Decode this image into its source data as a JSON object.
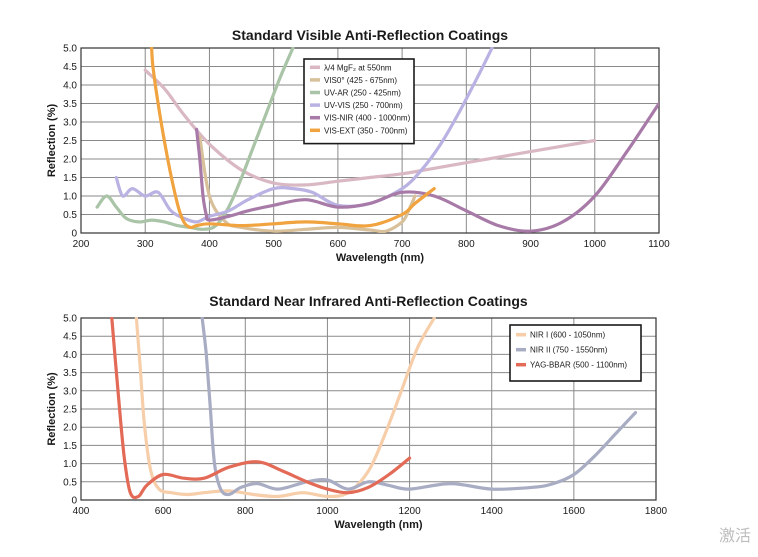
{
  "chart_data": [
    {
      "type": "line",
      "title": "Standard Visible Anti-Reflection Coatings",
      "xlabel": "Wavelength (nm)",
      "ylabel": "Reflection (%)",
      "xlim": [
        200,
        1100
      ],
      "ylim": [
        0,
        5.0
      ],
      "xticks": [
        "200",
        "300",
        "400",
        "500",
        "600",
        "700",
        "800",
        "900",
        "1000",
        "1100"
      ],
      "yticks": [
        "0",
        "0.5",
        "1.0",
        "1.5",
        "2.0",
        "2.5",
        "3.0",
        "3.5",
        "4.0",
        "4.5",
        "5.0"
      ],
      "grid": true,
      "legend_position": "top-left-center",
      "series": [
        {
          "name": "λ/4 MgF₂ at 550nm",
          "color": "#d9b8c4",
          "x": [
            300,
            330,
            360,
            400,
            450,
            500,
            550,
            600,
            650,
            700,
            750,
            800,
            850,
            900,
            950,
            1000
          ],
          "y": [
            4.4,
            3.9,
            3.2,
            2.4,
            1.7,
            1.35,
            1.3,
            1.4,
            1.5,
            1.6,
            1.75,
            1.9,
            2.05,
            2.2,
            2.35,
            2.5
          ]
        },
        {
          "name": "VIS0° (425 - 675nm)",
          "color": "#d8c09a",
          "x": [
            385,
            400,
            425,
            450,
            500,
            550,
            600,
            650,
            675,
            700,
            710,
            720
          ],
          "y": [
            2.6,
            1.0,
            0.3,
            0.15,
            0.05,
            0.1,
            0.15,
            0.08,
            0.05,
            0.3,
            0.6,
            1.0
          ]
        },
        {
          "name": "UV-AR (250 - 425nm)",
          "color": "#a9c4a6",
          "x": [
            225,
            240,
            255,
            270,
            290,
            310,
            330,
            350,
            370,
            390,
            410,
            430,
            450,
            470,
            490,
            510,
            530
          ],
          "y": [
            0.7,
            1.0,
            0.7,
            0.4,
            0.3,
            0.35,
            0.3,
            0.2,
            0.15,
            0.1,
            0.2,
            0.7,
            1.5,
            2.4,
            3.3,
            4.2,
            5.0
          ]
        },
        {
          "name": "UV-VIS (250 - 700nm)",
          "color": "#b9b2e2",
          "x": [
            255,
            265,
            280,
            300,
            320,
            340,
            360,
            380,
            400,
            430,
            460,
            500,
            530,
            560,
            600,
            650,
            700,
            730,
            760,
            790,
            820,
            840
          ],
          "y": [
            1.5,
            1.0,
            1.2,
            1.0,
            1.1,
            0.6,
            0.4,
            0.3,
            0.45,
            0.6,
            0.9,
            1.2,
            1.2,
            1.1,
            0.75,
            0.8,
            1.2,
            1.7,
            2.4,
            3.3,
            4.3,
            5.0
          ]
        },
        {
          "name": "VIS-NIR (400 - 1000nm)",
          "color": "#a77aa8",
          "x": [
            380,
            385,
            390,
            395,
            400,
            430,
            460,
            500,
            550,
            600,
            650,
            700,
            750,
            800,
            850,
            900,
            950,
            1000,
            1050,
            1100
          ],
          "y": [
            2.8,
            2.0,
            1.0,
            0.5,
            0.35,
            0.45,
            0.6,
            0.75,
            0.9,
            0.7,
            0.8,
            1.1,
            1.0,
            0.6,
            0.2,
            0.05,
            0.3,
            1.0,
            2.2,
            3.5
          ]
        },
        {
          "name": "VIS-EXT (350 - 700nm)",
          "color": "#f0a33e",
          "x": [
            310,
            312,
            320,
            335,
            350,
            360,
            370,
            380,
            400,
            450,
            500,
            550,
            600,
            650,
            700,
            720,
            750
          ],
          "y": [
            5.0,
            4.5,
            3.5,
            2.0,
            0.8,
            0.3,
            0.15,
            0.2,
            0.25,
            0.2,
            0.25,
            0.3,
            0.25,
            0.2,
            0.5,
            0.8,
            1.2
          ]
        }
      ]
    },
    {
      "type": "line",
      "title": "Standard Near Infrared Anti-Reflection Coatings",
      "xlabel": "Wavelength (nm)",
      "ylabel": "Reflection (%)",
      "xlim": [
        400,
        1800
      ],
      "ylim": [
        0,
        5.0
      ],
      "xticks": [
        "400",
        "600",
        "800",
        "1000",
        "1200",
        "1400",
        "1600",
        "1800"
      ],
      "yticks": [
        "0",
        "0.5",
        "1.0",
        "1.5",
        "2.0",
        "2.5",
        "3.0",
        "3.5",
        "4.0",
        "4.5",
        "5.0"
      ],
      "grid": true,
      "legend_position": "top-right",
      "series": [
        {
          "name": "NIR I (600 - 1050nm)",
          "color": "#f6ceaa",
          "x": [
            535,
            545,
            555,
            570,
            590,
            620,
            660,
            700,
            760,
            820,
            880,
            940,
            1000,
            1050,
            1100,
            1140,
            1180,
            1220,
            1260
          ],
          "y": [
            5.0,
            3.5,
            2.0,
            0.8,
            0.3,
            0.2,
            0.15,
            0.2,
            0.25,
            0.15,
            0.1,
            0.2,
            0.1,
            0.2,
            0.8,
            1.8,
            3.0,
            4.2,
            5.0
          ]
        },
        {
          "name": "NIR II (750 - 1550nm)",
          "color": "#a9adc4",
          "x": [
            695,
            705,
            715,
            725,
            740,
            760,
            790,
            830,
            880,
            950,
            1000,
            1050,
            1100,
            1150,
            1200,
            1300,
            1400,
            1500,
            1550,
            1600,
            1650,
            1700,
            1750
          ],
          "y": [
            5.0,
            4.0,
            2.5,
            1.0,
            0.3,
            0.15,
            0.35,
            0.45,
            0.3,
            0.5,
            0.55,
            0.3,
            0.5,
            0.4,
            0.3,
            0.45,
            0.3,
            0.35,
            0.45,
            0.7,
            1.2,
            1.8,
            2.4
          ]
        },
        {
          "name": "YAG-BBAR (500 - 1100nm)",
          "color": "#e36a56",
          "x": [
            475,
            490,
            505,
            520,
            540,
            560,
            600,
            650,
            700,
            760,
            830,
            890,
            950,
            1000,
            1050,
            1100,
            1150,
            1200
          ],
          "y": [
            5.0,
            3.0,
            1.2,
            0.2,
            0.1,
            0.4,
            0.7,
            0.6,
            0.6,
            0.9,
            1.05,
            0.8,
            0.5,
            0.3,
            0.2,
            0.35,
            0.7,
            1.15
          ]
        }
      ]
    }
  ],
  "watermark": "激活"
}
